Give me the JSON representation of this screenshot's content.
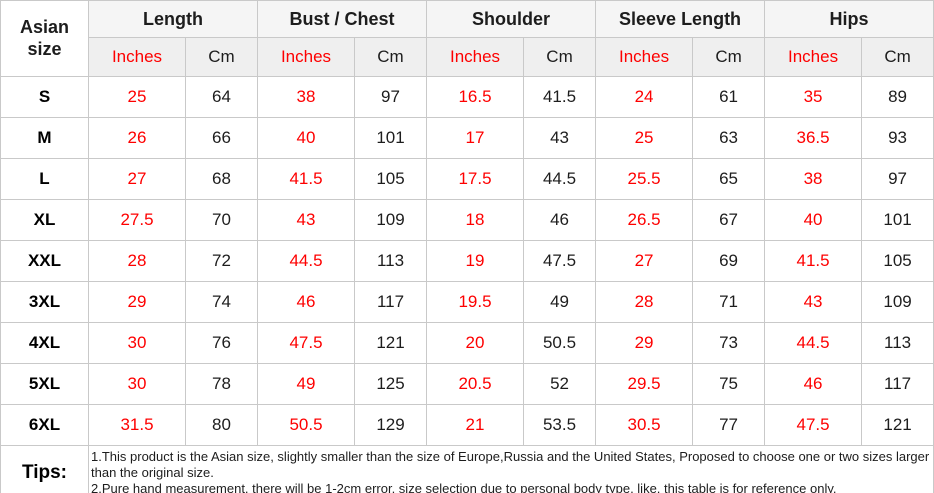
{
  "chart_data": {
    "type": "table",
    "corner_header": "Asian size",
    "measurement_groups": [
      "Length",
      "Bust / Chest",
      "Shoulder",
      "Sleeve Length",
      "Hips"
    ],
    "unit_columns": {
      "inches_label": "Inches",
      "cm_label": "Cm"
    },
    "rows": [
      {
        "size": "S",
        "values": [
          25,
          64,
          38,
          97,
          16.5,
          41.5,
          24,
          61,
          35,
          89
        ]
      },
      {
        "size": "M",
        "values": [
          26,
          66,
          40,
          101,
          17,
          43,
          25,
          63,
          36.5,
          93
        ]
      },
      {
        "size": "L",
        "values": [
          27,
          68,
          41.5,
          105,
          17.5,
          44.5,
          25.5,
          65,
          38,
          97
        ]
      },
      {
        "size": "XL",
        "values": [
          27.5,
          70,
          43,
          109,
          18,
          46,
          26.5,
          67,
          40,
          101
        ]
      },
      {
        "size": "XXL",
        "values": [
          28,
          72,
          44.5,
          113,
          19,
          47.5,
          27,
          69,
          41.5,
          105
        ]
      },
      {
        "size": "3XL",
        "values": [
          29,
          74,
          46,
          117,
          19.5,
          49,
          28,
          71,
          43,
          109
        ]
      },
      {
        "size": "4XL",
        "values": [
          30,
          76,
          47.5,
          121,
          20,
          50.5,
          29,
          73,
          44.5,
          113
        ]
      },
      {
        "size": "5XL",
        "values": [
          30,
          78,
          49,
          125,
          20.5,
          52,
          29.5,
          75,
          46,
          117
        ]
      },
      {
        "size": "6XL",
        "values": [
          31.5,
          80,
          50.5,
          129,
          21,
          53.5,
          30.5,
          77,
          47.5,
          121
        ]
      }
    ],
    "tips": {
      "label": "Tips:",
      "lines": [
        "1.This product is the Asian size, slightly smaller than the size of Europe,Russia and the United States, Proposed to choose one or two sizes larger than the original size.",
        "2.Pure hand measurement, there will be 1-2cm error, size selection due to personal body type, like, this table is for reference only."
      ]
    },
    "colors": {
      "inches_red": "#fe0000",
      "value_black": "#1d1d1d",
      "border": "#c9c9c9",
      "header_bg": "#f5f5f5",
      "subheader_bg": "#efefef"
    }
  }
}
